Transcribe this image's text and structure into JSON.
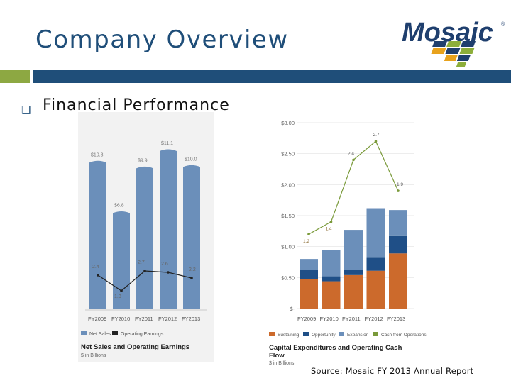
{
  "header": {
    "title": "Company Overview",
    "logo_text": "Mosaic",
    "logo_reg": "®"
  },
  "section": {
    "heading": "Financial Performance"
  },
  "colors": {
    "title": "#1f4e79",
    "accent_green": "#8da842",
    "net_sales": "#6b8fba",
    "operating_earnings": "#222222",
    "sustaining": "#cc6a2c",
    "opportunity": "#1f4f87",
    "expansion": "#6b8fba",
    "cash_from_operations": "#7a9a3a"
  },
  "left_chart": {
    "categories": [
      "FY2009",
      "FY2010",
      "FY2011",
      "FY2012",
      "FY2013"
    ],
    "net_sales_labels": [
      "$10.3",
      "$6.8",
      "$9.9",
      "$11.1",
      "$10.0"
    ],
    "earnings_labels": [
      "2.4",
      "1.3",
      "2.7",
      "2.6",
      "2.2"
    ],
    "legend": [
      "Net Sales",
      "Operating Earnings"
    ],
    "title": "Net Sales and Operating Earnings",
    "subtitle": "$ in Billions"
  },
  "right_chart": {
    "y_ticks": [
      "$3.00",
      "$2.50",
      "$2.00",
      "$1.50",
      "$1.00",
      "$0.50",
      "$-"
    ],
    "categories": [
      "FY2009",
      "FY2010",
      "FY2011",
      "FY2012",
      "FY2013"
    ],
    "cash_labels": [
      "1.2",
      "1.4",
      "2.4",
      "2.7",
      "1.9"
    ],
    "legend": [
      "Sustaining",
      "Opportunity",
      "Expansion",
      "Cash from Operations"
    ],
    "title": "Capital Expenditures and Operating Cash Flow",
    "subtitle": "$ in Billions"
  },
  "source": "Source: Mosaic FY 2013 Annual Report",
  "chart_data": [
    {
      "type": "bar",
      "title": "Net Sales and Operating Earnings",
      "subtitle": "$ in Billions",
      "categories": [
        "FY2009",
        "FY2010",
        "FY2011",
        "FY2012",
        "FY2013"
      ],
      "series": [
        {
          "name": "Net Sales",
          "type": "bar",
          "values": [
            10.3,
            6.8,
            9.9,
            11.1,
            10.0
          ]
        },
        {
          "name": "Operating Earnings",
          "type": "line",
          "values": [
            2.4,
            1.3,
            2.7,
            2.6,
            2.2
          ]
        }
      ],
      "ylim": [
        0,
        12
      ],
      "grid": false,
      "legend": "bottom"
    },
    {
      "type": "bar",
      "stacked": true,
      "title": "Capital Expenditures and Operating Cash Flow",
      "subtitle": "$ in Billions",
      "categories": [
        "FY2009",
        "FY2010",
        "FY2011",
        "FY2012",
        "FY2013"
      ],
      "series": [
        {
          "name": "Sustaining",
          "type": "bar",
          "values": [
            0.48,
            0.44,
            0.54,
            0.61,
            0.89
          ]
        },
        {
          "name": "Opportunity",
          "type": "bar",
          "values": [
            0.14,
            0.08,
            0.08,
            0.21,
            0.28
          ]
        },
        {
          "name": "Expansion",
          "type": "bar",
          "values": [
            0.18,
            0.43,
            0.65,
            0.8,
            0.42
          ]
        },
        {
          "name": "Cash from Operations",
          "type": "line",
          "values": [
            1.2,
            1.4,
            2.4,
            2.7,
            1.9
          ]
        }
      ],
      "ylim": [
        0,
        3.0
      ],
      "y_ticks": [
        3.0,
        2.5,
        2.0,
        1.5,
        1.0,
        0.5,
        0
      ],
      "grid": true,
      "legend": "bottom"
    }
  ]
}
